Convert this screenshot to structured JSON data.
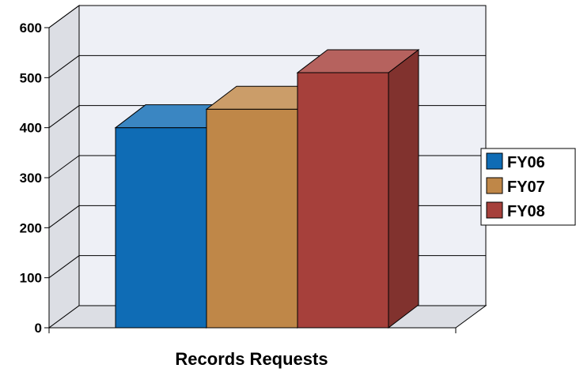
{
  "chart_data": {
    "type": "bar",
    "style": "3d-clustered",
    "categories": [
      "Records Requests"
    ],
    "series": [
      {
        "name": "FY06",
        "values": [
          400
        ],
        "color": "#0f6cb5"
      },
      {
        "name": "FY07",
        "values": [
          437
        ],
        "color": "#bf8748"
      },
      {
        "name": "FY08",
        "values": [
          510
        ],
        "color": "#a6403b"
      }
    ],
    "title": "",
    "xlabel": "Records Requests",
    "ylabel": "",
    "ylim": [
      0,
      600
    ],
    "yticks": [
      "0",
      "100",
      "200",
      "300",
      "400",
      "500",
      "600"
    ],
    "grid": true,
    "legend": "right"
  }
}
